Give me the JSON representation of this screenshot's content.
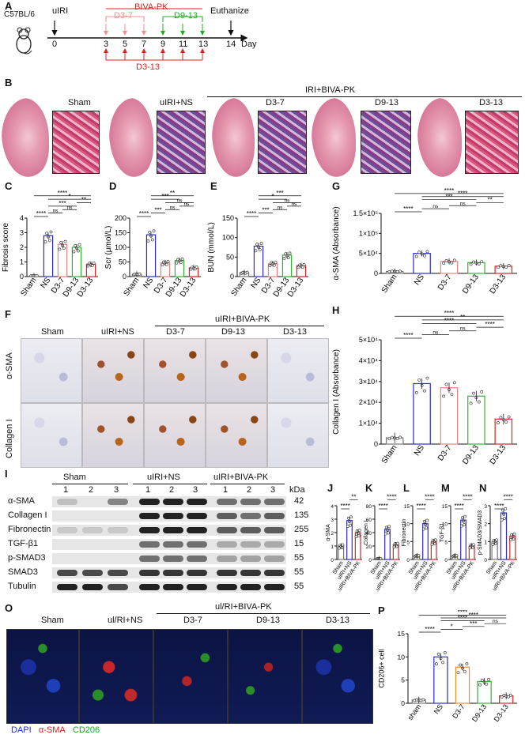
{
  "panelA": {
    "label": "A",
    "mouse": "C57BL/6",
    "uiri": "uIRI",
    "bivapk": "BIVA-PK",
    "d37": "D3-7",
    "d913": "D9-13",
    "d313": "D3-13",
    "euth": "Euthanize",
    "days": [
      "0",
      "3",
      "5",
      "7",
      "9",
      "11",
      "13",
      "14"
    ],
    "day_label": "Day"
  },
  "panelB": {
    "label": "B",
    "titles": [
      "Sham",
      "uIRI+NS",
      "D3-7",
      "D9-13",
      "D3-13"
    ],
    "group": "IRI+BIVA-PK"
  },
  "panelF": {
    "label": "F",
    "cols": [
      "Sham",
      "uIRI+NS",
      "D3-7",
      "D9-13",
      "D3-13"
    ],
    "group": "uIRI+BIVA-PK",
    "rows": [
      "α-SMA",
      "Collagen I"
    ]
  },
  "panelI": {
    "label": "I",
    "groups": [
      "Sham",
      "uIRI+NS",
      "uIRI+BIVA-PK"
    ],
    "lanes": [
      "1",
      "2",
      "3",
      "1",
      "2",
      "3",
      "1",
      "2",
      "3"
    ],
    "kda": "kDa",
    "proteins": [
      {
        "name": "α-SMA",
        "kda": "42"
      },
      {
        "name": "Collagen I",
        "kda": "135"
      },
      {
        "name": "Fibronectin",
        "kda": "255"
      },
      {
        "name": "TGF-β1",
        "kda": "15"
      },
      {
        "name": "p-SMAD3",
        "kda": "55"
      },
      {
        "name": "SMAD3",
        "kda": "55"
      },
      {
        "name": "Tubulin",
        "kda": "55"
      }
    ]
  },
  "panelO": {
    "label": "O",
    "cols": [
      "Sham",
      "ul/RI+NS",
      "D3-7",
      "D9-13",
      "D3-13"
    ],
    "group": "ul/RI+BIVA-PK",
    "legend": [
      "DAPI",
      "α-SMA",
      "CD206"
    ],
    "legend_colors": [
      "#1f2fd1",
      "#d11a1a",
      "#1e9e1e"
    ]
  },
  "colors": {
    "sham": "#777777",
    "ns": "#2a2ad4",
    "d37": "#f08080",
    "d913": "#2bb62b",
    "d313": "#e02020",
    "orange": "#f08a24"
  },
  "chart_data": [
    {
      "panel": "C",
      "type": "bar",
      "ylabel": "Fibrosis score",
      "categories": [
        "Sham",
        "NS",
        "D3-7",
        "D9-13",
        "D3-13"
      ],
      "values": [
        0.05,
        2.8,
        2.2,
        2.0,
        0.85
      ],
      "ylim": [
        0,
        4
      ],
      "yticks": [
        "0",
        "1",
        "2",
        "3",
        "4"
      ],
      "sig": [
        {
          "text": "****",
          "from": 0,
          "to": 1
        },
        {
          "text": "ns",
          "from": 1,
          "to": 2
        },
        {
          "text": "ns",
          "from": 2,
          "to": 3
        },
        {
          "text": "***",
          "from": 1,
          "to": 3
        },
        {
          "text": "**",
          "from": 3,
          "to": 4
        },
        {
          "text": "*",
          "from": 1,
          "to": 4
        },
        {
          "text": "****",
          "from": 0,
          "to": 4
        }
      ]
    },
    {
      "panel": "D",
      "type": "bar",
      "ylabel": "Scr (μmol/L)",
      "categories": [
        "Sham",
        "NS",
        "D3-7",
        "D9-13",
        "D3-13"
      ],
      "values": [
        8,
        143,
        47,
        55,
        30
      ],
      "ylim": [
        0,
        200
      ],
      "yticks": [
        "0",
        "50",
        "100",
        "150",
        "200"
      ],
      "sig": [
        {
          "text": "****",
          "from": 0,
          "to": 1
        },
        {
          "text": "***",
          "from": 1,
          "to": 2
        },
        {
          "text": "ns",
          "from": 2,
          "to": 3
        },
        {
          "text": "ns",
          "from": 3,
          "to": 4
        },
        {
          "text": "ns",
          "from": 2,
          "to": 4
        },
        {
          "text": "***",
          "from": 1,
          "to": 3
        },
        {
          "text": "**",
          "from": 1,
          "to": 4
        }
      ]
    },
    {
      "panel": "E",
      "type": "bar",
      "ylabel": "BUN (mmol/L)",
      "categories": [
        "Sham",
        "NS",
        "D3-7",
        "D9-13",
        "D3-13"
      ],
      "values": [
        10,
        78,
        33,
        55,
        28
      ],
      "ylim": [
        0,
        150
      ],
      "yticks": [
        "0",
        "50",
        "100",
        "150"
      ],
      "sig": [
        {
          "text": "****",
          "from": 0,
          "to": 1
        },
        {
          "text": "***",
          "from": 1,
          "to": 2
        },
        {
          "text": "ns",
          "from": 2,
          "to": 3
        },
        {
          "text": "ns",
          "from": 3,
          "to": 4
        },
        {
          "text": "ns",
          "from": 2,
          "to": 4
        },
        {
          "text": "*",
          "from": 1,
          "to": 3
        },
        {
          "text": "***",
          "from": 1,
          "to": 4
        }
      ]
    },
    {
      "panel": "G",
      "type": "bar",
      "ylabel": "α-SMA (Absorbance)",
      "categories": [
        "Sham",
        "NS",
        "D3-7",
        "D9-13",
        "D3-13"
      ],
      "values": [
        5000,
        50000,
        30000,
        27000,
        18000
      ],
      "ylim": [
        0,
        150000
      ],
      "yticks": [
        "0",
        "5×10⁴",
        "1×10⁵",
        "1.5×10⁵"
      ],
      "sig": [
        {
          "text": "****",
          "from": 0,
          "to": 1
        },
        {
          "text": "ns",
          "from": 1,
          "to": 2
        },
        {
          "text": "ns",
          "from": 2,
          "to": 3
        },
        {
          "text": "**",
          "from": 3,
          "to": 4
        },
        {
          "text": "***",
          "from": 1,
          "to": 3
        },
        {
          "text": "****",
          "from": 1,
          "to": 4
        },
        {
          "text": "****",
          "from": 0,
          "to": 4
        }
      ]
    },
    {
      "panel": "H",
      "type": "bar",
      "ylabel": "Collagen I (Absorbance)",
      "categories": [
        "Sham",
        "NS",
        "D3-7",
        "D9-13",
        "D3-13"
      ],
      "values": [
        3000,
        29000,
        27000,
        23000,
        12000
      ],
      "ylim": [
        0,
        50000
      ],
      "yticks": [
        "0",
        "1×10⁴",
        "2×10⁴",
        "3×10⁴",
        "4×10⁴",
        "5×10⁴"
      ],
      "sig": [
        {
          "text": "****",
          "from": 0,
          "to": 1
        },
        {
          "text": "ns",
          "from": 1,
          "to": 2
        },
        {
          "text": "ns",
          "from": 2,
          "to": 3
        },
        {
          "text": "****",
          "from": 3,
          "to": 4
        },
        {
          "text": "****",
          "from": 1,
          "to": 3
        },
        {
          "text": "**",
          "from": 1,
          "to": 4
        },
        {
          "text": "****",
          "from": 0,
          "to": 4
        }
      ]
    },
    {
      "panel": "J",
      "type": "bar",
      "ylabel": "α-SMA",
      "categories": [
        "Sham",
        "uIRI+NS",
        "uIRI+BIVA-PK"
      ],
      "values": [
        1.0,
        2.9,
        2.0
      ],
      "ylim": [
        0,
        4
      ],
      "yticks": [
        "0",
        "1",
        "2",
        "3",
        "4"
      ],
      "sig": [
        {
          "text": "****",
          "from": 0,
          "to": 1
        },
        {
          "text": "**",
          "from": 1,
          "to": 2
        }
      ]
    },
    {
      "panel": "K",
      "type": "bar",
      "ylabel": "Collagen I",
      "categories": [
        "Sham",
        "uIRI+NS",
        "uIRI+BIVA-PK"
      ],
      "values": [
        1.0,
        45,
        22
      ],
      "ylim": [
        0,
        80
      ],
      "yticks": [
        "0",
        "20",
        "40",
        "60",
        "80"
      ],
      "sig": [
        {
          "text": "****",
          "from": 0,
          "to": 1
        },
        {
          "text": "****",
          "from": 1,
          "to": 2
        }
      ]
    },
    {
      "panel": "L",
      "type": "bar",
      "ylabel": "Fibronectin",
      "categories": [
        "Sham",
        "uIRI+NS",
        "uIRI+BIVA-PK"
      ],
      "values": [
        1.0,
        10,
        5.0
      ],
      "ylim": [
        0,
        15
      ],
      "yticks": [
        "0",
        "5",
        "10",
        "15"
      ],
      "sig": [
        {
          "text": "****",
          "from": 0,
          "to": 1
        },
        {
          "text": "****",
          "from": 1,
          "to": 2
        }
      ]
    },
    {
      "panel": "M",
      "type": "bar",
      "ylabel": "TGF-β1",
      "categories": [
        "Sham",
        "uIRI+NS",
        "uIRI+BIVA-PK"
      ],
      "values": [
        1.0,
        11,
        3.8
      ],
      "ylim": [
        0,
        15
      ],
      "yticks": [
        "0",
        "5",
        "10",
        "15"
      ],
      "sig": [
        {
          "text": "****",
          "from": 0,
          "to": 1
        },
        {
          "text": "****",
          "from": 1,
          "to": 2
        }
      ]
    },
    {
      "panel": "N",
      "type": "bar",
      "ylabel": "p-SMAD3/SMAD3",
      "categories": [
        "Sham",
        "uIRI+NS",
        "uIRI+BIVA-PK"
      ],
      "values": [
        1.0,
        2.6,
        1.3
      ],
      "ylim": [
        0,
        3
      ],
      "yticks": [
        "0",
        "1",
        "2",
        "3"
      ],
      "sig": [
        {
          "text": "****",
          "from": 0,
          "to": 1
        },
        {
          "text": "****",
          "from": 1,
          "to": 2
        }
      ]
    },
    {
      "panel": "P",
      "type": "bar",
      "ylabel": "CD206+ cell",
      "categories": [
        "sham",
        "NS",
        "D3-7",
        "D9-13",
        "D3-13"
      ],
      "values": [
        0.7,
        10,
        7.8,
        4.7,
        1.6
      ],
      "ylim": [
        0,
        15
      ],
      "yticks": [
        "0",
        "5",
        "10",
        "15"
      ],
      "sig": [
        {
          "text": "****",
          "from": 0,
          "to": 1
        },
        {
          "text": "*",
          "from": 1,
          "to": 2
        },
        {
          "text": "***",
          "from": 2,
          "to": 3
        },
        {
          "text": "ns",
          "from": 3,
          "to": 4
        },
        {
          "text": "****",
          "from": 1,
          "to": 3
        },
        {
          "text": "****",
          "from": 1,
          "to": 4
        },
        {
          "text": "****",
          "from": 0,
          "to": 4
        }
      ]
    }
  ]
}
